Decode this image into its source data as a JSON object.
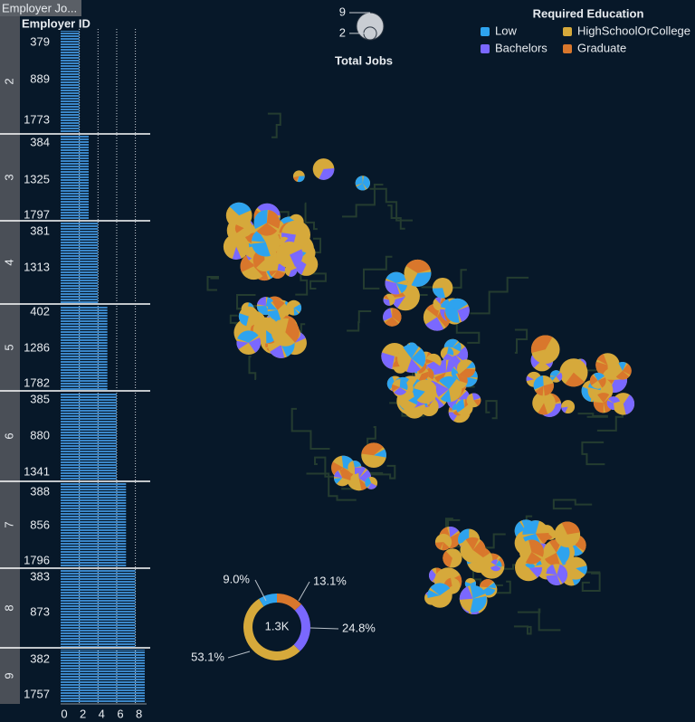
{
  "tab": "Employer Jo...",
  "chart_data": [
    {
      "type": "bar",
      "title": "Employer ID",
      "color": "#3a86c8",
      "groups": [
        {
          "label": "2",
          "value": 2,
          "tick_labels": [
            "379",
            "889",
            "1773"
          ]
        },
        {
          "label": "3",
          "value": 3,
          "tick_labels": [
            "384",
            "1325",
            "1797"
          ]
        },
        {
          "label": "4",
          "value": 4,
          "tick_labels": [
            "381",
            "1313"
          ]
        },
        {
          "label": "5",
          "value": 5,
          "tick_labels": [
            "402",
            "1286",
            "1782"
          ]
        },
        {
          "label": "6",
          "value": 6,
          "tick_labels": [
            "385",
            "880",
            "1341"
          ]
        },
        {
          "label": "7",
          "value": 7,
          "tick_labels": [
            "388",
            "856",
            "1796"
          ]
        },
        {
          "label": "8",
          "value": 8,
          "tick_labels": [
            "383",
            "873"
          ]
        },
        {
          "label": "9",
          "value": 9,
          "tick_labels": [
            "382",
            "1757"
          ]
        }
      ],
      "xlim": [
        0,
        9.2
      ],
      "xticks": [
        0,
        2,
        4,
        6,
        8
      ],
      "grid": true
    },
    {
      "type": "map",
      "size_title": "Total Jobs",
      "size_ticks": [
        9,
        2
      ],
      "legend_title": "Required Education",
      "series": [
        {
          "name": "Low",
          "color": "#2ea3ee"
        },
        {
          "name": "Bachelors",
          "color": "#7a68ff"
        },
        {
          "name": "HighSchoolOrCollege",
          "color": "#d6a93b"
        },
        {
          "name": "Graduate",
          "color": "#d9772c"
        }
      ]
    },
    {
      "type": "donut",
      "center_label": "1.3K",
      "values": [
        9.0,
        13.1,
        24.8,
        53.1
      ],
      "value_labels": [
        "9.0%",
        "13.1%",
        "24.8%",
        "53.1%"
      ],
      "colors": [
        "#2ea3ee",
        "#d9772c",
        "#7a68ff",
        "#d6a93b"
      ]
    }
  ]
}
